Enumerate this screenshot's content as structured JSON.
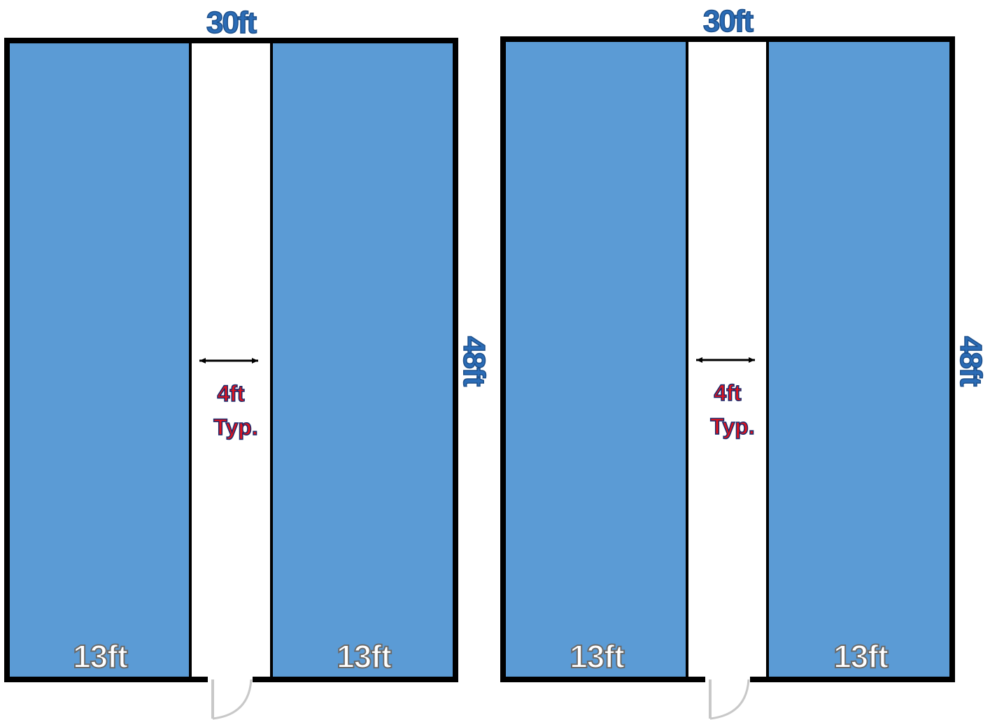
{
  "colors": {
    "bay_fill": "#5b9bd5",
    "wall": "#000000",
    "aisle": "#ffffff",
    "dimension_blue": "#2b6cb6",
    "aisle_label_red": "#e0141e",
    "bay_label": "#ffffff"
  },
  "plans": [
    {
      "width_label": "30ft",
      "depth_label": "48ft",
      "aisle_width_label": "4ft",
      "aisle_note": "Typ.",
      "left_bay_label": "13ft",
      "right_bay_label": "13ft",
      "door_icon": "door-swing-icon",
      "arrow_icon": "double-arrow-icon"
    },
    {
      "width_label": "30ft",
      "depth_label": "48ft",
      "aisle_width_label": "4ft",
      "aisle_note": "Typ.",
      "left_bay_label": "13ft",
      "right_bay_label": "13ft",
      "door_icon": "door-swing-icon",
      "arrow_icon": "double-arrow-icon"
    }
  ]
}
